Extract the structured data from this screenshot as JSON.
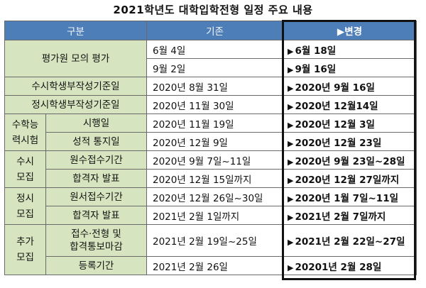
{
  "title": "2021학년도 대학입학전형  일정 주요 내용",
  "header": {
    "category": "구분",
    "old": "기존",
    "arrow": "▶",
    "new": "변경"
  },
  "arrow": "▶",
  "rows": {
    "mock": {
      "cat": "평가원 모의 평가",
      "a": {
        "old": "6월 4일",
        "new": "6월 18일"
      },
      "b": {
        "old": "9월 2일",
        "new": "9월 16일"
      }
    },
    "susi_record": {
      "cat": "수시학생부작성기준일",
      "old": "2020년 8월 31일",
      "new": "2020년 9월 16일"
    },
    "jeongsi_record": {
      "cat": "정시학생부작성기준일",
      "old": "2020년 11월 30일",
      "new": "2020년 12월14일"
    },
    "csat": {
      "cat_line1": "수학능",
      "cat_line2": "력시험",
      "exam": {
        "sub": "시행일",
        "old": "2020년 11월 19일",
        "new": "2020년 12월 3일"
      },
      "score": {
        "sub": "성적 통지일",
        "old": "2020년 12월 9일",
        "new": "2020년 12월 23일"
      }
    },
    "susi": {
      "cat_line1": "수시",
      "cat_line2": "모집",
      "apply": {
        "sub": "원수접수기간",
        "old": "2020년 9월 7일~11일",
        "new": "2020년 9월 23일~28일"
      },
      "pass": {
        "sub": "합격자 발표",
        "old": "2020년 12월 15일까지",
        "new": "2020년 12월 27일까지"
      }
    },
    "jeongsi": {
      "cat_line1": "정시",
      "cat_line2": "모집",
      "apply": {
        "sub": "원서접수기간",
        "old": "2020년 12월 26일~30일",
        "new": "2020년 1월 7일~11일"
      },
      "pass": {
        "sub": "합격자 발표",
        "old": "2021년 2월 1일까지",
        "new": "2021년 2월 7일까지"
      }
    },
    "extra": {
      "cat_line1": "추가",
      "cat_line2": "모집",
      "apply": {
        "sub_line1": "접수·전형 및",
        "sub_line2": "합격통보마감",
        "old": "2021년 2월 19일~25일",
        "new": "2021년 2월 22일~27일"
      },
      "register": {
        "sub": "등록기간",
        "old": "2021년 2월 26일",
        "new": "20201년 2월 28일"
      }
    }
  }
}
